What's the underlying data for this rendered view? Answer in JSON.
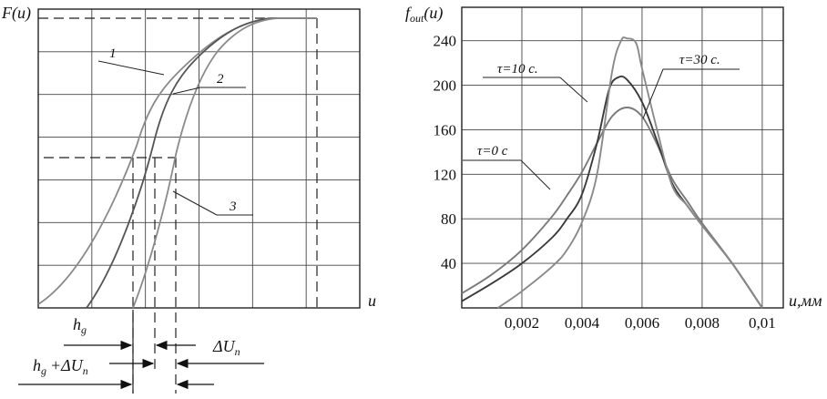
{
  "chart_data": [
    {
      "type": "line",
      "ylabel": "F(u)",
      "xlabel": "u",
      "grid": true,
      "series": [
        {
          "name": "1",
          "color": "#8a8a8a"
        },
        {
          "name": "2",
          "color": "#555555"
        },
        {
          "name": "3",
          "color": "#8a8a8a"
        }
      ],
      "annotations": {
        "hg": "h",
        "hg_sub": "g",
        "dU": "ΔU",
        "dU_sub": "n",
        "hgdU_a": "h",
        "hgdU_sub1": "g",
        "hgdU_b": "+ΔU",
        "hgdU_sub2": "n"
      }
    },
    {
      "type": "line",
      "ylabel_main": "f",
      "ylabel_sub": "out",
      "ylabel_tail": "(u)",
      "xlabel": "u,мм",
      "ylim": [
        0,
        270
      ],
      "xlim": [
        0,
        0.0107
      ],
      "yticks": [
        40,
        80,
        120,
        160,
        200,
        240
      ],
      "xticks": [
        "0,002",
        "0,004",
        "0,006",
        "0,008",
        "0,01"
      ],
      "grid": true,
      "series": [
        {
          "name": "τ=0 с",
          "color": "#7a7a7a",
          "x": [
            0,
            0.001,
            0.002,
            0.003,
            0.0035,
            0.004,
            0.0045,
            0.005,
            0.0055,
            0.006,
            0.0065,
            0.007,
            0.0075,
            0.008,
            0.009,
            0.01
          ],
          "y": [
            13,
            30,
            52,
            82,
            101,
            122,
            148,
            172,
            180,
            172,
            147,
            116,
            96,
            76,
            40,
            0
          ]
        },
        {
          "name": "τ=10 с.",
          "color": "#3a3a3a",
          "x": [
            0,
            0.001,
            0.002,
            0.003,
            0.0035,
            0.004,
            0.0045,
            0.0049,
            0.0052,
            0.0055,
            0.006,
            0.0065,
            0.007,
            0.0075,
            0.008,
            0.009,
            0.01
          ],
          "y": [
            6,
            22,
            40,
            63,
            80,
            102,
            148,
            196,
            207,
            205,
            185,
            150,
            112,
            92,
            74,
            40,
            0
          ]
        },
        {
          "name": "τ=30 с.",
          "color": "#8a8a8a",
          "x": [
            0.0012,
            0.002,
            0.003,
            0.0035,
            0.004,
            0.0045,
            0.005,
            0.0053,
            0.0055,
            0.0058,
            0.006,
            0.0065,
            0.007,
            0.0075,
            0.008,
            0.009,
            0.01
          ],
          "y": [
            0,
            15,
            37,
            52,
            77,
            120,
            212,
            240,
            242,
            238,
            215,
            160,
            110,
            92,
            74,
            40,
            0
          ]
        }
      ]
    }
  ]
}
